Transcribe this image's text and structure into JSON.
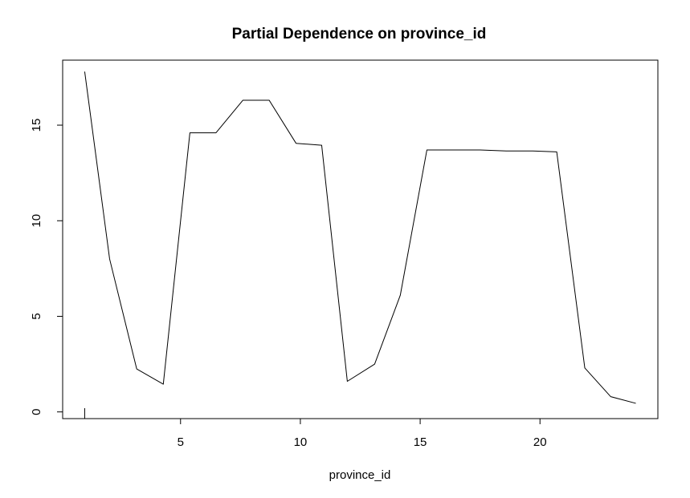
{
  "chart_data": {
    "type": "line",
    "title": "Partial Dependence on province_id",
    "xlabel": "province_id",
    "ylabel": "",
    "xlim": [
      0.08,
      24.92
    ],
    "ylim": [
      -0.35,
      18.4
    ],
    "x_ticks": [
      5,
      10,
      15,
      20
    ],
    "y_ticks": [
      0,
      5,
      10,
      15
    ],
    "grid": false,
    "legend": "none",
    "line_color": "#000000",
    "series": [
      {
        "x": [
          1.0,
          2.04,
          3.17,
          4.28,
          5.39,
          6.48,
          7.6,
          8.7,
          9.82,
          10.89,
          11.96,
          13.1,
          14.17,
          15.28,
          16.37,
          17.5,
          18.59,
          19.7,
          20.7,
          21.87,
          22.95,
          24.0
        ],
        "y": [
          17.8,
          8.0,
          2.25,
          1.45,
          14.6,
          14.6,
          16.3,
          16.3,
          14.05,
          13.95,
          1.6,
          2.5,
          6.1,
          13.7,
          13.7,
          13.7,
          13.65,
          13.65,
          13.6,
          2.3,
          0.8,
          0.45
        ]
      }
    ],
    "rug_marks": [
      1.0
    ]
  }
}
